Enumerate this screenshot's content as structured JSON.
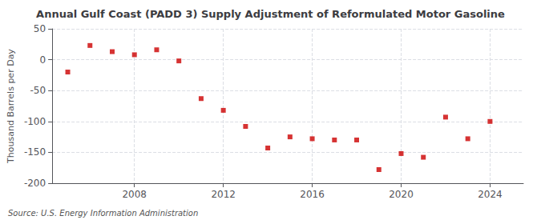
{
  "chart_data": {
    "type": "scatter",
    "title": "Annual Gulf Coast (PADD 3) Supply Adjustment of Reformulated Motor Gasoline",
    "ylabel": "Thousand Barrels per Day",
    "annotations": [
      "Source: U.S. Energy Information Administration"
    ],
    "x": [
      2005,
      2006,
      2007,
      2008,
      2009,
      2010,
      2011,
      2012,
      2013,
      2014,
      2015,
      2016,
      2017,
      2018,
      2019,
      2020,
      2021,
      2022,
      2023,
      2024
    ],
    "values": [
      -20,
      23,
      13,
      8,
      16,
      -2,
      -63,
      -82,
      -108,
      -143,
      -125,
      -128,
      -130,
      -130,
      -178,
      -152,
      -158,
      -93,
      -128,
      -100
    ],
    "color": "#cc0000",
    "marker": "square",
    "xlim": [
      2004.3,
      2025.5
    ],
    "xticks": [
      2008,
      2012,
      2016,
      2020,
      2024
    ],
    "ylim": [
      -200,
      50
    ],
    "yticks": [
      -200,
      -150,
      -100,
      -50,
      0,
      50
    ],
    "grid": true
  }
}
